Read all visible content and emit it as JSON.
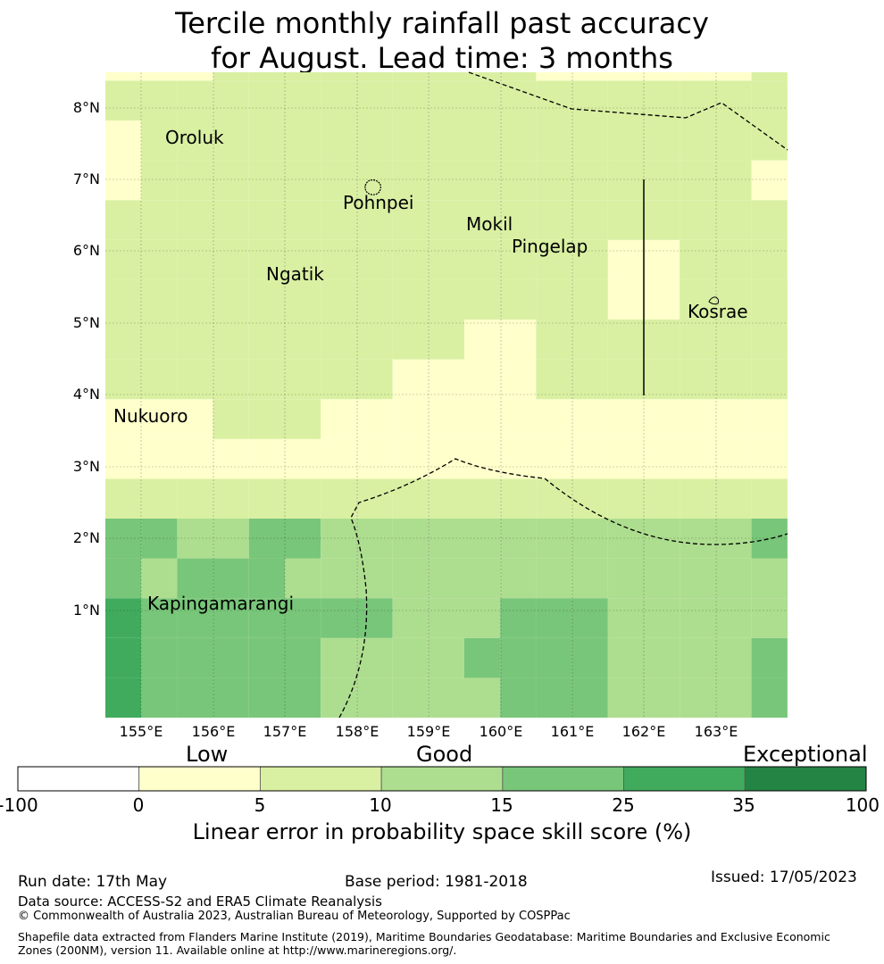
{
  "title_line1": "Tercile monthly rainfall past accuracy",
  "title_line2": "for August. Lead time: 3 months",
  "map": {
    "lat_labels": [
      "8°N",
      "7°N",
      "6°N",
      "5°N",
      "4°N",
      "3°N",
      "2°N",
      "1°N"
    ],
    "lon_labels": [
      "155°E",
      "156°E",
      "157°E",
      "158°E",
      "159°E",
      "160°E",
      "161°E",
      "162°E",
      "163°E"
    ],
    "places": [
      "Oroluk",
      "Pohnpei",
      "Mokil",
      "Pingelap",
      "Ngatik",
      "Kosrae",
      "Nukuoro",
      "Kapingamarangi"
    ],
    "category_colors": [
      "#ffffff",
      "#ffffcc",
      "#d9f0a3",
      "#addd8e",
      "#78c679",
      "#41ab5d",
      "#238443"
    ],
    "grid_categories": [
      [
        4,
        3,
        3,
        3,
        3,
        3,
        2,
        2,
        2,
        2,
        2,
        3,
        3,
        3,
        2,
        2,
        2,
        2,
        3,
        3
      ],
      [
        4,
        3,
        3,
        3,
        3,
        3,
        2,
        2,
        2,
        2,
        3,
        3,
        3,
        3,
        2,
        2,
        2,
        2,
        3,
        3
      ],
      [
        4,
        3,
        3,
        3,
        3,
        3,
        3,
        3,
        2,
        2,
        2,
        3,
        3,
        3,
        2,
        2,
        2,
        2,
        2,
        3
      ],
      [
        3,
        2,
        3,
        3,
        3,
        2,
        2,
        2,
        2,
        2,
        2,
        2,
        2,
        2,
        2,
        2,
        2,
        2,
        2,
        3
      ],
      [
        3,
        3,
        2,
        2,
        3,
        3,
        2,
        2,
        2,
        2,
        2,
        2,
        2,
        2,
        2,
        2,
        2,
        2,
        3,
        3
      ],
      [
        1,
        1,
        1,
        1,
        1,
        1,
        1,
        1,
        1,
        1,
        1,
        1,
        1,
        1,
        1,
        1,
        1,
        1,
        1,
        1
      ],
      [
        0,
        0,
        0,
        0,
        0,
        0,
        0,
        0,
        0,
        0,
        0,
        0,
        0,
        0,
        0,
        0,
        0,
        0,
        0,
        1
      ],
      [
        0,
        0,
        0,
        1,
        1,
        1,
        0,
        0,
        0,
        0,
        0,
        0,
        0,
        0,
        0,
        0,
        0,
        0,
        0,
        1
      ],
      [
        1,
        1,
        1,
        1,
        1,
        1,
        1,
        1,
        0,
        0,
        0,
        0,
        1,
        1,
        1,
        1,
        1,
        1,
        1,
        1
      ],
      [
        1,
        1,
        1,
        1,
        1,
        1,
        1,
        1,
        1,
        1,
        0,
        0,
        1,
        1,
        1,
        1,
        1,
        1,
        1,
        1
      ],
      [
        1,
        1,
        1,
        1,
        1,
        1,
        1,
        1,
        1,
        1,
        1,
        1,
        1,
        1,
        0,
        0,
        1,
        1,
        1,
        1
      ],
      [
        1,
        1,
        1,
        1,
        1,
        1,
        1,
        1,
        1,
        1,
        1,
        1,
        1,
        1,
        0,
        0,
        1,
        1,
        1,
        0
      ],
      [
        1,
        1,
        1,
        1,
        1,
        1,
        1,
        1,
        1,
        1,
        1,
        1,
        1,
        1,
        1,
        1,
        1,
        1,
        1,
        0
      ],
      [
        0,
        1,
        1,
        1,
        1,
        1,
        1,
        1,
        1,
        1,
        1,
        1,
        1,
        1,
        1,
        1,
        1,
        1,
        0,
        0
      ],
      [
        0,
        1,
        1,
        1,
        1,
        1,
        1,
        1,
        1,
        1,
        1,
        1,
        1,
        1,
        1,
        1,
        1,
        1,
        1,
        0
      ],
      [
        1,
        1,
        1,
        1,
        1,
        1,
        1,
        1,
        1,
        1,
        1,
        1,
        1,
        1,
        1,
        1,
        1,
        1,
        1,
        1
      ],
      [
        0,
        0,
        0,
        1,
        1,
        1,
        1,
        1,
        1,
        1,
        1,
        1,
        0,
        0,
        0,
        0,
        0,
        0,
        1,
        1
      ],
      [
        0,
        0,
        0,
        1,
        1,
        1,
        1,
        1,
        1,
        1,
        1,
        1,
        0,
        0,
        0,
        0,
        0,
        0,
        1,
        1
      ],
      [
        1,
        1,
        1,
        1,
        1,
        1,
        2,
        2,
        2,
        2,
        2,
        2,
        1,
        1,
        1,
        1,
        1,
        1,
        2,
        2
      ],
      [
        1,
        1,
        1,
        1,
        1,
        1,
        1,
        1,
        1,
        1,
        1,
        1,
        1,
        1,
        1,
        1,
        1,
        1,
        1,
        1
      ]
    ]
  },
  "colorbar": {
    "category_words": [
      "Low",
      "Good",
      "Exceptional"
    ],
    "ticks": [
      "-100",
      "0",
      "5",
      "10",
      "15",
      "25",
      "35",
      "100"
    ],
    "colors": [
      "#ffffff",
      "#ffffcc",
      "#d9f0a3",
      "#addd8e",
      "#78c679",
      "#41ab5d",
      "#238443"
    ],
    "label": "Linear error in probability space skill score (%)"
  },
  "footer": {
    "run_date": "Run date: 17th May",
    "base_period": "Base period: 1981-2018",
    "issued": "Issued: 17/05/2023",
    "data_source": "Data source: ACCESS-S2 and ERA5 Climate Reanalysis",
    "copyright": "© Commonwealth of Australia 2023, Australian Bureau of Meteorology, Supported by COSPPac",
    "shapefile": "Shapefile data extracted from Flanders Marine Institute (2019), Maritime Boundaries Geodatabase: Maritime Boundaries and Exclusive Economic Zones (200NM), version 11. Available online at http://www.marineregions.org/."
  }
}
